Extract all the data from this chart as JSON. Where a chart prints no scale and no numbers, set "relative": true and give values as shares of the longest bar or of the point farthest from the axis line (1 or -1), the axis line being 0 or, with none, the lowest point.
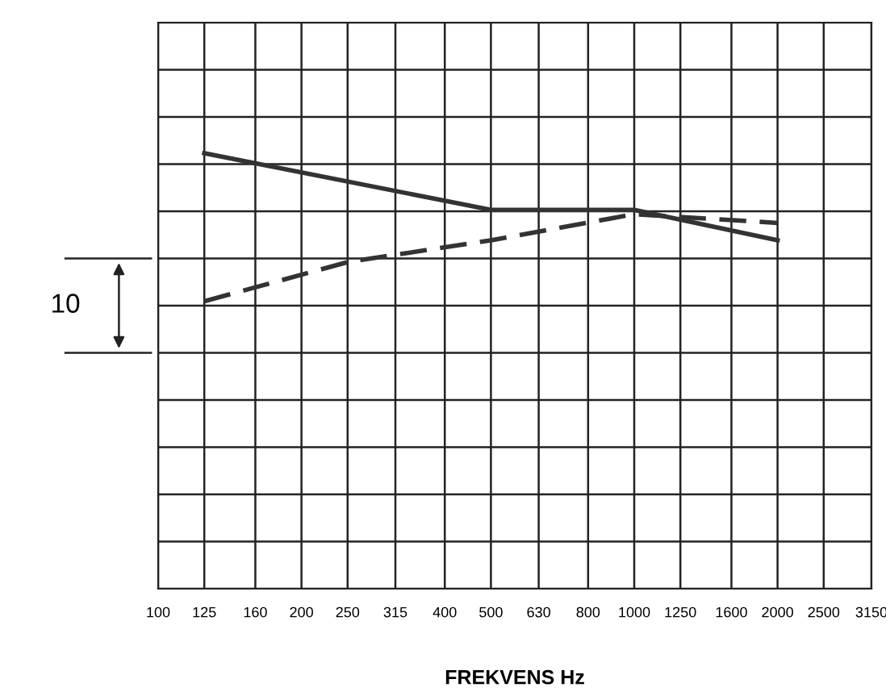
{
  "chart_data": {
    "type": "line",
    "relative": true,
    "log": "x",
    "xlabel": "FREKVENS Hz",
    "xlim": [
      100,
      3150
    ],
    "xticks": [
      100,
      125,
      160,
      200,
      250,
      315,
      400,
      500,
      630,
      800,
      1000,
      1250,
      1600,
      2000,
      2500,
      3150
    ],
    "grid": true,
    "annotations": [
      "10"
    ],
    "series": [
      {
        "color": "#333333",
        "line_style": "solid",
        "x": [
          125,
          500,
          1000,
          2000
        ],
        "values": [
          1,
          0.87,
          0.87,
          0.8
        ]
      },
      {
        "color": "#333333",
        "line_style": "dashed",
        "x": [
          125,
          250,
          500,
          1000,
          2000
        ],
        "values": [
          0.66,
          0.75,
          0.8,
          0.86,
          0.84
        ]
      }
    ]
  }
}
